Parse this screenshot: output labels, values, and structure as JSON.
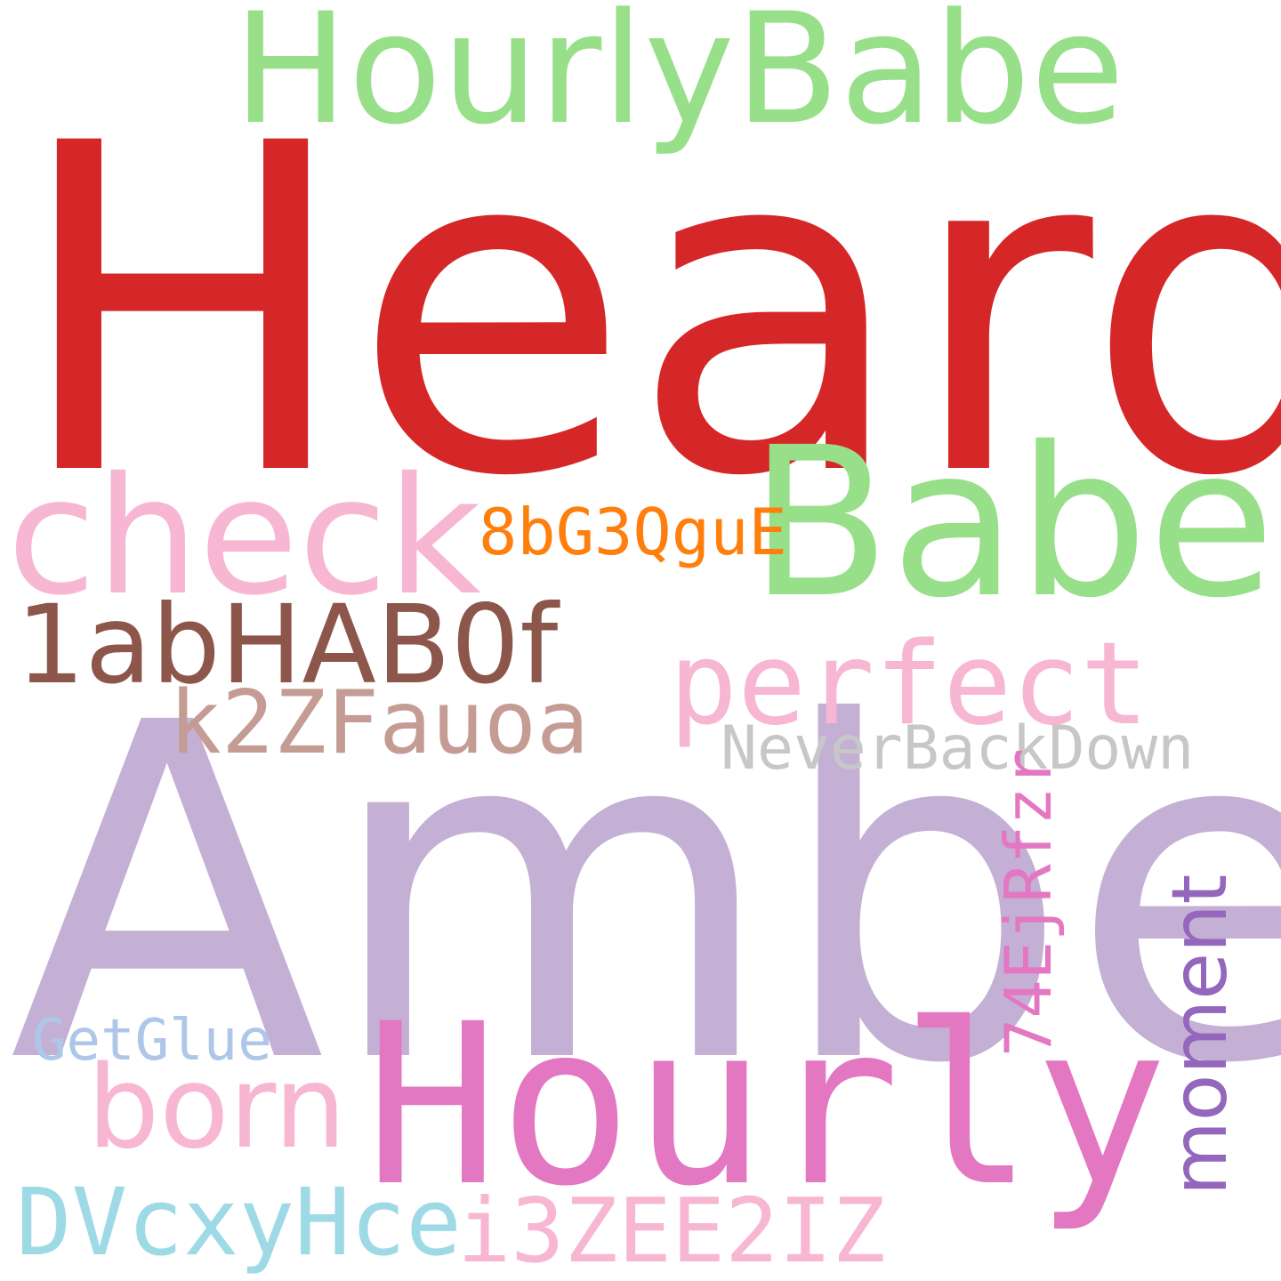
{
  "words": {
    "heard": {
      "text": "Heard",
      "color": "#d62728"
    },
    "amber": {
      "text": "Amber",
      "color": "#c5b0d5"
    },
    "hourlybabe": {
      "text": "HourlyBabe",
      "color": "#98df8a"
    },
    "babe": {
      "text": "Babe",
      "color": "#98df8a"
    },
    "hourly": {
      "text": "Hourly",
      "color": "#e377c2"
    },
    "check": {
      "text": "check",
      "color": "#f7b6d2"
    },
    "code_8bg3qgue": {
      "text": "8bG3QguE",
      "color": "#ff7f0e"
    },
    "code_1abhab0f": {
      "text": "1abHAB0f",
      "color": "#8c564b"
    },
    "perfect": {
      "text": "perfect",
      "color": "#f7b6d2"
    },
    "code_k2zfauoa": {
      "text": "k2ZFauoa",
      "color": "#c49c94"
    },
    "neverbackdown": {
      "text": "NeverBackDown",
      "color": "#c7c7c7"
    },
    "code_74ejrfzr": {
      "text": "74EjRfzr",
      "color": "#e377c2"
    },
    "moment": {
      "text": "moment",
      "color": "#9467bd"
    },
    "getglue": {
      "text": "GetGlue",
      "color": "#aec7e8"
    },
    "born": {
      "text": "born",
      "color": "#f7b6d2"
    },
    "code_dvcxyhce": {
      "text": "DVcxyHce",
      "color": "#9edae5"
    },
    "code_i3zee2iz": {
      "text": "i3ZEE2IZ",
      "color": "#f7b6d2"
    }
  }
}
